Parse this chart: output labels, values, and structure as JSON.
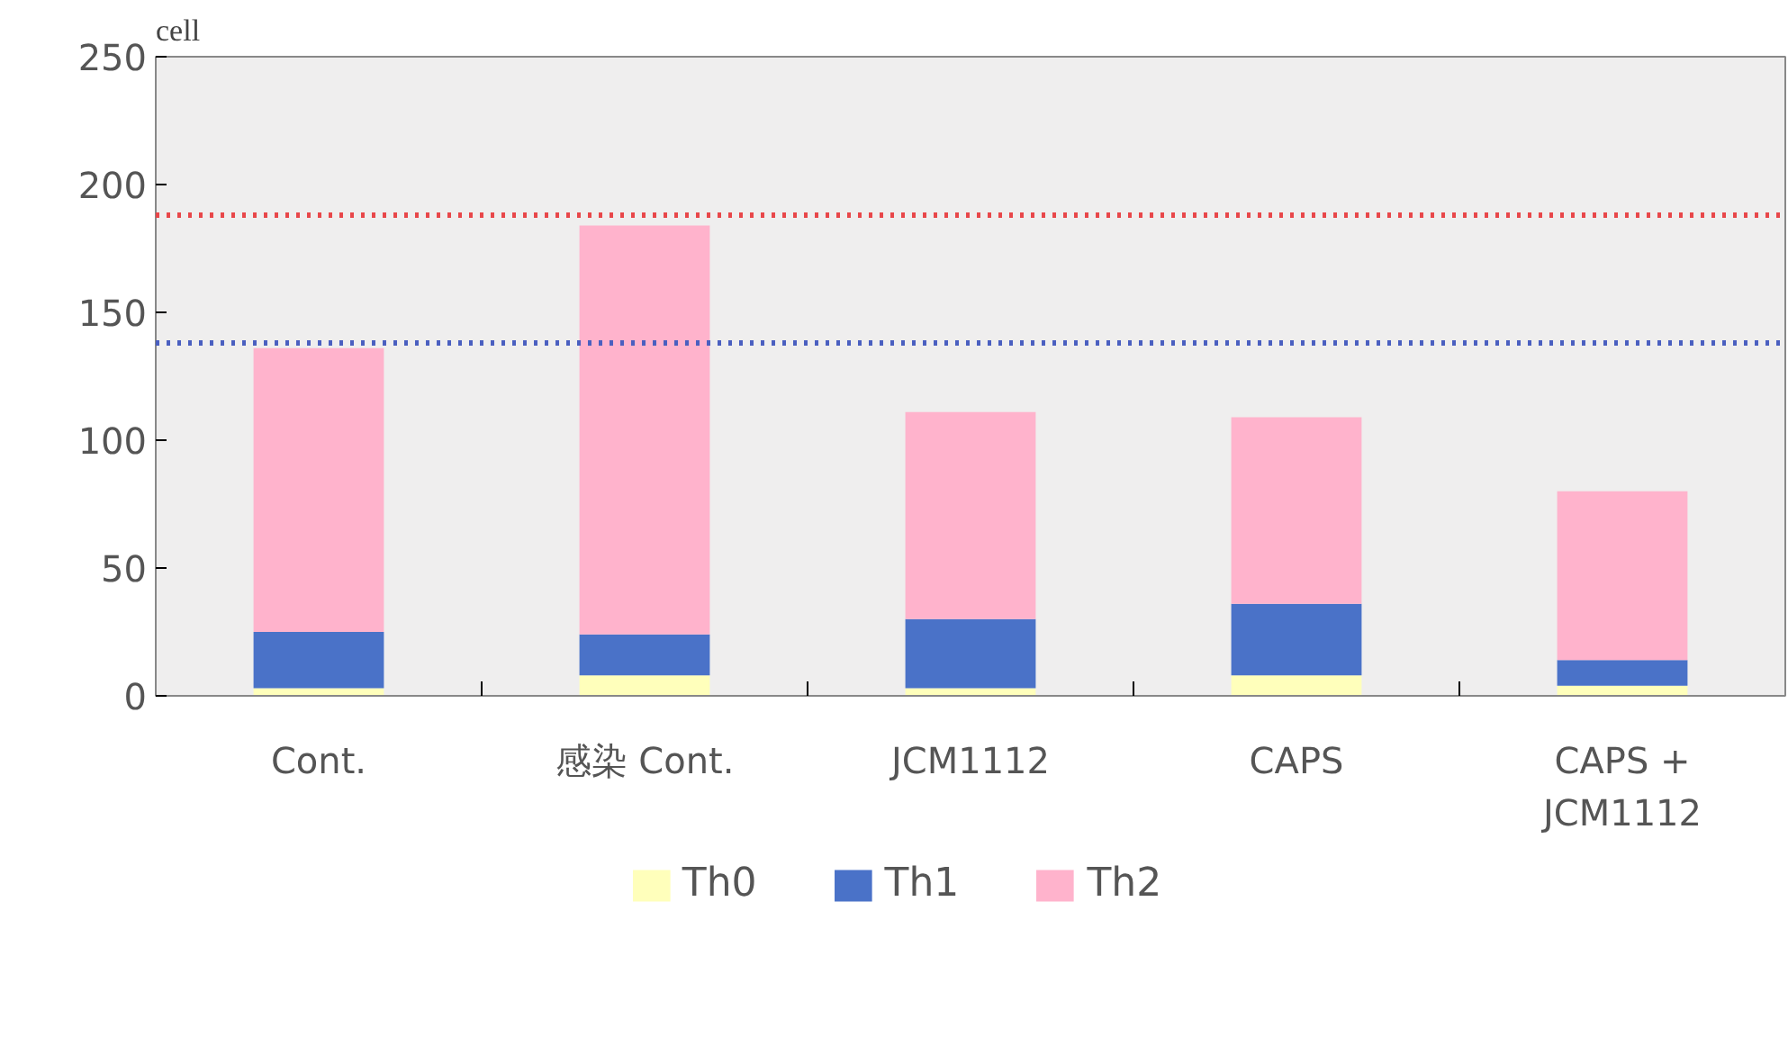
{
  "chart_data": {
    "type": "bar",
    "stacked": true,
    "ylabel": "cell",
    "categories": [
      "Cont.",
      "感染 Cont.",
      "JCM1112",
      "CAPS",
      "CAPS +\nJCM1112"
    ],
    "series": [
      {
        "name": "Th0",
        "color": "#ffffbb",
        "values": [
          3,
          8,
          3,
          8,
          4
        ]
      },
      {
        "name": "Th1",
        "color": "#4a72c8",
        "values": [
          22,
          16,
          27,
          28,
          10
        ]
      },
      {
        "name": "Th2",
        "color": "#ffb3cc",
        "values": [
          111,
          160,
          81,
          73,
          66
        ]
      }
    ],
    "ylim": [
      0,
      250
    ],
    "yticks": [
      0,
      50,
      100,
      150,
      200,
      250
    ],
    "grid": false,
    "legend": "bottom",
    "ref_lines": [
      {
        "axis": "y",
        "value": 188,
        "color": "#e8474a",
        "line_style": "dotted"
      },
      {
        "axis": "y",
        "value": 138,
        "color": "#4a5fc0",
        "line_style": "dotted"
      }
    ]
  }
}
